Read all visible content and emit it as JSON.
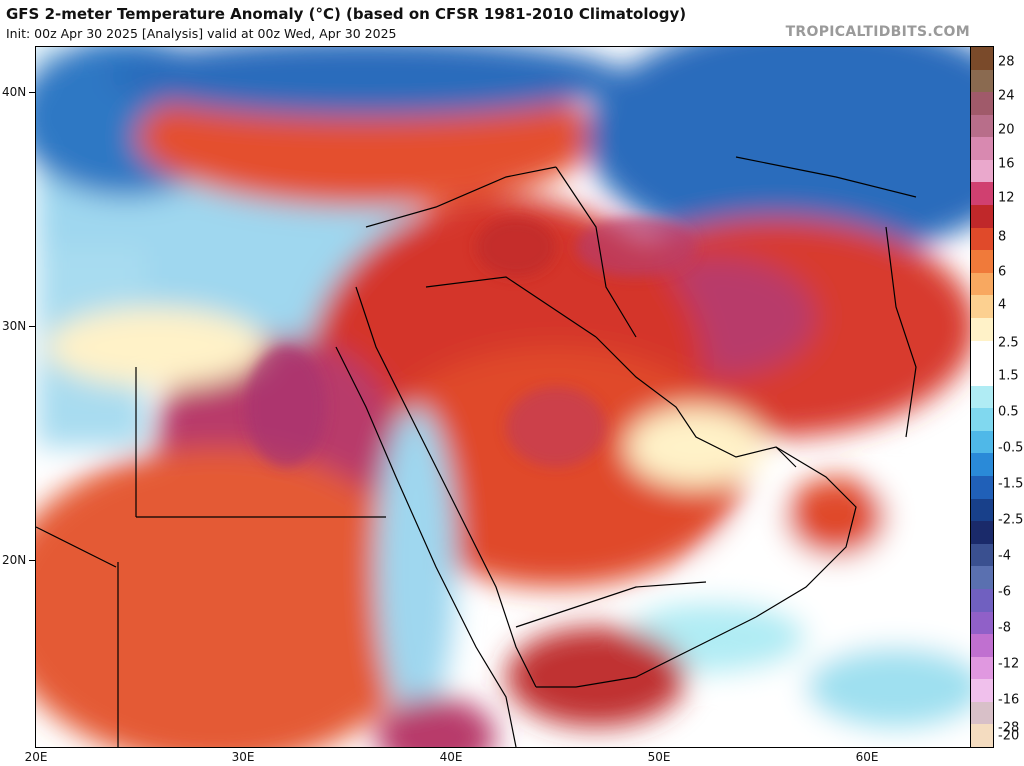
{
  "header": {
    "title": "GFS 2-meter Temperature Anomaly (°C) (based on CFSR 1981-2010 Climatology)",
    "subtitle": "Init: 00z Apr 30 2025   [Analysis]   valid at 00z Wed, Apr 30 2025",
    "brand": "TROPICALTIDBITS.COM"
  },
  "map": {
    "lat_labels": [
      "40N",
      "30N",
      "20N"
    ],
    "lon_labels": [
      "20E",
      "30E",
      "40E",
      "50E",
      "60E"
    ],
    "colors": {
      "sea_cold": "#9fd7ef",
      "cold_region": "#2a74c0",
      "warm": "#f07a3a",
      "hot": "#d4362a",
      "very_hot": "#b83a6a",
      "neutral": "#ffffff"
    }
  },
  "colorbar": {
    "labels": [
      "28",
      "24",
      "20",
      "16",
      "12",
      "8",
      "6",
      "4",
      "2.5",
      "1.5",
      "0.5",
      "-0.5",
      "-1.5",
      "-2.5",
      "-4",
      "-6",
      "-8",
      "-12",
      "-16",
      "-20",
      "-28"
    ],
    "colors": [
      "#7a4a2a",
      "#8a6a50",
      "#a05a6a",
      "#b86e8a",
      "#d889b0",
      "#eaa8cc",
      "#d04070",
      "#c0282a",
      "#e04a2a",
      "#f07a3a",
      "#f8a860",
      "#fcd090",
      "#fff2c8",
      "#ffffff",
      "#ffffff",
      "#b0ecf4",
      "#80d8ef",
      "#4fb8e8",
      "#2a8ad8",
      "#2060b8",
      "#18408a",
      "#1a2a6a",
      "#3a5090",
      "#5a70b0",
      "#7060c0",
      "#9060c8",
      "#c070d0",
      "#e098e0",
      "#f0c0ec",
      "#d8c0c8",
      "#f4dcc0"
    ]
  }
}
